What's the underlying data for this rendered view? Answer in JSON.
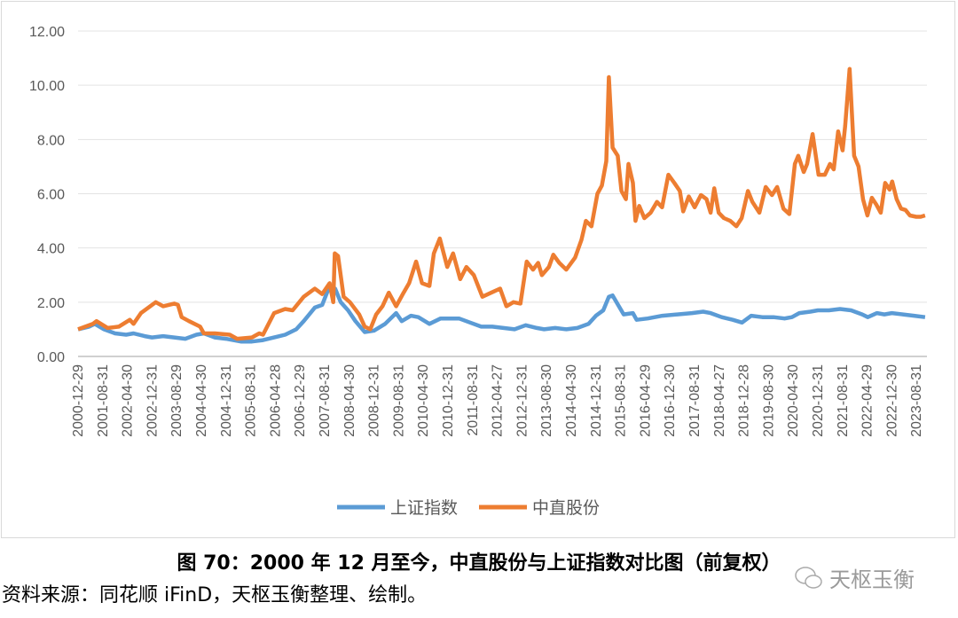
{
  "chart_data": {
    "type": "line",
    "title": "",
    "xlabel": "",
    "ylabel": "",
    "ylim": [
      0,
      12
    ],
    "xlim": [
      2001.0,
      2023.95
    ],
    "yticks": [
      "0.00",
      "2.00",
      "4.00",
      "6.00",
      "8.00",
      "10.00",
      "12.00"
    ],
    "ytick_values": [
      0,
      2,
      4,
      6,
      8,
      10,
      12
    ],
    "xtick_labels": [
      "2000-12-29",
      "2001-08-31",
      "2002-04-30",
      "2002-12-31",
      "2003-08-29",
      "2004-04-30",
      "2004-12-31",
      "2005-08-31",
      "2006-04-28",
      "2006-12-29",
      "2007-08-31",
      "2008-04-30",
      "2008-12-31",
      "2009-08-31",
      "2010-04-30",
      "2010-12-31",
      "2011-08-31",
      "2012-04-27",
      "2012-12-31",
      "2013-08-30",
      "2014-04-30",
      "2014-12-31",
      "2015-08-31",
      "2016-04-29",
      "2016-12-30",
      "2017-08-31",
      "2018-04-27",
      "2018-12-28",
      "2019-08-30",
      "2020-04-30",
      "2020-12-31",
      "2021-08-31",
      "2022-04-29",
      "2022-12-30",
      "2023-08-31"
    ],
    "grid": true,
    "legend_position": "bottom",
    "series": [
      {
        "name": "上证指数",
        "color": "#5b9bd5",
        "x": [
          2001.0,
          2001.3,
          2001.45,
          2001.7,
          2002.0,
          2002.3,
          2002.5,
          2002.8,
          2003.0,
          2003.3,
          2003.6,
          2003.9,
          2004.2,
          2004.4,
          2004.7,
          2005.0,
          2005.4,
          2005.7,
          2006.0,
          2006.3,
          2006.6,
          2006.9,
          2007.1,
          2007.4,
          2007.6,
          2007.8,
          2007.95,
          2008.1,
          2008.3,
          2008.5,
          2008.75,
          2009.0,
          2009.3,
          2009.6,
          2009.75,
          2010.0,
          2010.2,
          2010.5,
          2010.8,
          2011.0,
          2011.3,
          2011.6,
          2011.9,
          2012.2,
          2012.5,
          2012.8,
          2013.1,
          2013.4,
          2013.6,
          2013.9,
          2014.2,
          2014.5,
          2014.8,
          2015.0,
          2015.2,
          2015.35,
          2015.45,
          2015.6,
          2015.75,
          2016.0,
          2016.1,
          2016.4,
          2016.8,
          2017.2,
          2017.6,
          2017.9,
          2018.1,
          2018.4,
          2018.7,
          2018.95,
          2019.2,
          2019.5,
          2019.8,
          2020.1,
          2020.3,
          2020.5,
          2020.8,
          2021.0,
          2021.3,
          2021.6,
          2021.9,
          2022.2,
          2022.35,
          2022.6,
          2022.8,
          2023.0,
          2023.3,
          2023.6,
          2023.9
        ],
        "values": [
          1.0,
          1.1,
          1.2,
          1.0,
          0.85,
          0.8,
          0.85,
          0.75,
          0.7,
          0.75,
          0.7,
          0.65,
          0.8,
          0.85,
          0.7,
          0.65,
          0.55,
          0.55,
          0.6,
          0.7,
          0.8,
          1.0,
          1.3,
          1.8,
          1.9,
          2.6,
          2.5,
          2.0,
          1.7,
          1.3,
          0.9,
          0.95,
          1.2,
          1.6,
          1.3,
          1.5,
          1.45,
          1.2,
          1.4,
          1.4,
          1.4,
          1.25,
          1.1,
          1.1,
          1.05,
          1.0,
          1.15,
          1.05,
          1.0,
          1.05,
          1.0,
          1.05,
          1.2,
          1.5,
          1.7,
          2.2,
          2.25,
          1.9,
          1.55,
          1.6,
          1.35,
          1.4,
          1.5,
          1.55,
          1.6,
          1.65,
          1.6,
          1.45,
          1.35,
          1.25,
          1.5,
          1.45,
          1.45,
          1.4,
          1.45,
          1.6,
          1.65,
          1.7,
          1.7,
          1.75,
          1.7,
          1.55,
          1.45,
          1.6,
          1.55,
          1.6,
          1.55,
          1.5,
          1.45
        ]
      },
      {
        "name": "中直股份",
        "color": "#ed7d31",
        "x": [
          2001.0,
          2001.4,
          2001.5,
          2001.8,
          2002.1,
          2002.4,
          2002.5,
          2002.7,
          2003.1,
          2003.3,
          2003.6,
          2003.7,
          2003.8,
          2004.0,
          2004.3,
          2004.4,
          2004.7,
          2005.1,
          2005.3,
          2005.7,
          2005.9,
          2006.0,
          2006.3,
          2006.6,
          2006.8,
          2007.1,
          2007.4,
          2007.6,
          2007.8,
          2007.9,
          2007.94,
          2008.03,
          2008.18,
          2008.35,
          2008.6,
          2008.75,
          2008.9,
          2009.06,
          2009.23,
          2009.4,
          2009.6,
          2009.8,
          2009.95,
          2010.14,
          2010.3,
          2010.5,
          2010.62,
          2010.78,
          2010.98,
          2011.14,
          2011.33,
          2011.5,
          2011.7,
          2011.93,
          2012.17,
          2012.41,
          2012.58,
          2012.77,
          2012.96,
          2013.13,
          2013.3,
          2013.44,
          2013.54,
          2013.73,
          2013.85,
          2014.01,
          2014.2,
          2014.44,
          2014.61,
          2014.73,
          2014.88,
          2015.04,
          2015.16,
          2015.28,
          2015.35,
          2015.45,
          2015.59,
          2015.69,
          2015.81,
          2015.88,
          2016.0,
          2016.07,
          2016.17,
          2016.31,
          2016.48,
          2016.65,
          2016.79,
          2016.96,
          2017.12,
          2017.27,
          2017.36,
          2017.51,
          2017.67,
          2017.84,
          2017.99,
          2018.1,
          2018.2,
          2018.32,
          2018.46,
          2018.63,
          2018.8,
          2018.94,
          2019.11,
          2019.23,
          2019.42,
          2019.59,
          2019.76,
          2019.9,
          2020.07,
          2020.23,
          2020.38,
          2020.47,
          2020.62,
          2020.71,
          2020.86,
          2021.02,
          2021.19,
          2021.33,
          2021.43,
          2021.55,
          2021.67,
          2021.74,
          2021.86,
          2021.98,
          2022.1,
          2022.22,
          2022.34,
          2022.46,
          2022.58,
          2022.7,
          2022.82,
          2022.94,
          2023.01,
          2023.13,
          2023.25,
          2023.37,
          2023.49,
          2023.66,
          2023.78,
          2023.9
        ],
        "values": [
          1.0,
          1.2,
          1.3,
          1.05,
          1.1,
          1.35,
          1.2,
          1.6,
          2.0,
          1.85,
          1.95,
          1.9,
          1.45,
          1.3,
          1.1,
          0.85,
          0.85,
          0.8,
          0.65,
          0.7,
          0.85,
          0.8,
          1.6,
          1.75,
          1.7,
          2.2,
          2.5,
          2.3,
          2.7,
          2.0,
          3.8,
          3.7,
          2.2,
          2.0,
          1.55,
          1.1,
          1.0,
          1.55,
          1.85,
          2.35,
          1.85,
          2.35,
          2.7,
          3.5,
          2.7,
          2.6,
          3.8,
          4.35,
          3.3,
          3.8,
          2.85,
          3.3,
          3.0,
          2.2,
          2.35,
          2.5,
          1.85,
          2.0,
          1.95,
          3.5,
          3.2,
          3.45,
          3.0,
          3.3,
          3.75,
          3.45,
          3.2,
          3.65,
          4.3,
          5.0,
          4.8,
          6.0,
          6.3,
          7.2,
          10.3,
          7.7,
          7.4,
          6.1,
          5.8,
          7.1,
          6.4,
          5.0,
          5.55,
          5.1,
          5.3,
          5.7,
          5.5,
          6.7,
          6.4,
          6.1,
          5.35,
          5.9,
          5.5,
          5.95,
          5.8,
          5.3,
          6.2,
          5.3,
          5.1,
          5.0,
          4.8,
          5.1,
          6.1,
          5.7,
          5.3,
          6.25,
          5.95,
          6.25,
          5.45,
          5.25,
          7.1,
          7.4,
          6.8,
          7.1,
          8.2,
          6.7,
          6.7,
          7.1,
          6.9,
          8.3,
          7.6,
          8.5,
          10.6,
          7.4,
          7.0,
          5.8,
          5.2,
          5.85,
          5.6,
          5.3,
          6.4,
          6.15,
          6.45,
          5.8,
          5.45,
          5.4,
          5.2,
          5.15,
          5.15,
          5.2
        ]
      }
    ]
  },
  "caption": "图 70：2000 年 12 月至今，中直股份与上证指数对比图（前复权）",
  "source": "资料来源：同花顺 iFinD，天枢玉衡整理、绘制。",
  "watermark": "天枢玉衡"
}
